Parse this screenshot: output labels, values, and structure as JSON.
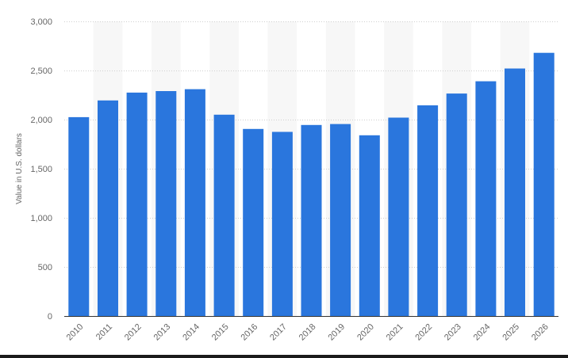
{
  "chart_data": {
    "type": "bar",
    "categories": [
      "2010",
      "2011",
      "2012",
      "2013",
      "2014",
      "2015",
      "2016",
      "2017",
      "2018",
      "2019",
      "2020",
      "2021",
      "2022",
      "2023",
      "2024",
      "2025",
      "2026"
    ],
    "values": [
      2025,
      2195,
      2275,
      2290,
      2310,
      2050,
      1905,
      1875,
      1945,
      1955,
      1840,
      2020,
      2145,
      2265,
      2390,
      2520,
      2680
    ],
    "title": "",
    "xlabel": "",
    "ylabel": "Value in U.S. dollars",
    "ylim": [
      0,
      3000
    ],
    "yticks": [
      0,
      500,
      1000,
      1500,
      2000,
      2500,
      3000
    ],
    "ytick_labels": [
      "0",
      "500",
      "1,000",
      "1,500",
      "2,000",
      "2,500",
      "3,000"
    ],
    "grid": true,
    "bar_color": "#2a76dd",
    "band_color": "#f7f7f7",
    "grid_color": "#cfcfcf",
    "axis_color": "#333333",
    "text_color": "#666666"
  }
}
